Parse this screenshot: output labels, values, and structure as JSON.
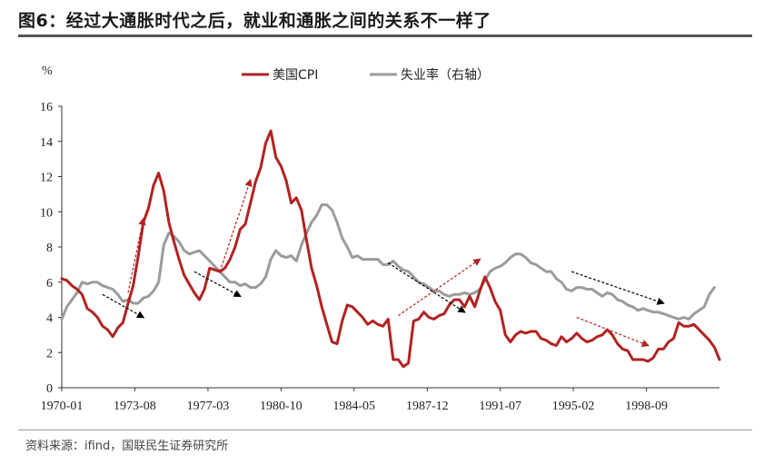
{
  "title": "图6：经过大通胀时代之后，就业和通胀之间的关系不一样了",
  "source": "资料来源：ifind，国联民生证券研究所",
  "chart_data": {
    "type": "line",
    "ylabel": "%",
    "ylim": [
      0,
      16
    ],
    "yticks": [
      "0",
      "2",
      "4",
      "6",
      "8",
      "10",
      "12",
      "14",
      "16"
    ],
    "xlim": [
      1970.0,
      2002.25
    ],
    "xticks": [
      {
        "label": "1970-01",
        "x": 1970.0
      },
      {
        "label": "1973-08",
        "x": 1973.58
      },
      {
        "label": "1977-03",
        "x": 1977.17
      },
      {
        "label": "1980-10",
        "x": 1980.75
      },
      {
        "label": "1984-05",
        "x": 1984.33
      },
      {
        "label": "1987-12",
        "x": 1987.92
      },
      {
        "label": "1991-07",
        "x": 1991.5
      },
      {
        "label": "1995-02",
        "x": 1995.08
      },
      {
        "label": "1998-09",
        "x": 1998.67
      }
    ],
    "series": [
      {
        "name": "美国CPI",
        "color": "#b22222",
        "points": [
          [
            1970.0,
            6.2
          ],
          [
            1970.25,
            6.1
          ],
          [
            1970.5,
            5.8
          ],
          [
            1970.75,
            5.6
          ],
          [
            1971.0,
            5.3
          ],
          [
            1971.25,
            4.5
          ],
          [
            1971.5,
            4.3
          ],
          [
            1971.75,
            4.0
          ],
          [
            1972.0,
            3.5
          ],
          [
            1972.25,
            3.3
          ],
          [
            1972.5,
            2.9
          ],
          [
            1972.75,
            3.4
          ],
          [
            1973.0,
            3.7
          ],
          [
            1973.25,
            4.8
          ],
          [
            1973.5,
            5.8
          ],
          [
            1973.75,
            7.5
          ],
          [
            1974.0,
            9.4
          ],
          [
            1974.25,
            10.2
          ],
          [
            1974.5,
            11.5
          ],
          [
            1974.75,
            12.2
          ],
          [
            1975.0,
            11.2
          ],
          [
            1975.25,
            9.4
          ],
          [
            1975.5,
            8.3
          ],
          [
            1975.75,
            7.3
          ],
          [
            1976.0,
            6.4
          ],
          [
            1976.25,
            5.9
          ],
          [
            1976.5,
            5.4
          ],
          [
            1976.75,
            5.0
          ],
          [
            1977.0,
            5.6
          ],
          [
            1977.25,
            6.8
          ],
          [
            1977.5,
            6.7
          ],
          [
            1977.75,
            6.6
          ],
          [
            1978.0,
            6.8
          ],
          [
            1978.25,
            7.3
          ],
          [
            1978.5,
            8.0
          ],
          [
            1978.75,
            9.0
          ],
          [
            1979.0,
            9.3
          ],
          [
            1979.25,
            10.5
          ],
          [
            1979.5,
            11.7
          ],
          [
            1979.75,
            12.5
          ],
          [
            1980.0,
            13.9
          ],
          [
            1980.25,
            14.6
          ],
          [
            1980.5,
            13.1
          ],
          [
            1980.75,
            12.6
          ],
          [
            1981.0,
            11.8
          ],
          [
            1981.25,
            10.5
          ],
          [
            1981.5,
            10.8
          ],
          [
            1981.75,
            10.1
          ],
          [
            1982.0,
            8.4
          ],
          [
            1982.25,
            6.8
          ],
          [
            1982.5,
            5.8
          ],
          [
            1982.75,
            4.6
          ],
          [
            1983.0,
            3.6
          ],
          [
            1983.25,
            2.6
          ],
          [
            1983.5,
            2.5
          ],
          [
            1983.75,
            3.8
          ],
          [
            1984.0,
            4.7
          ],
          [
            1984.25,
            4.6
          ],
          [
            1984.5,
            4.3
          ],
          [
            1984.75,
            4.0
          ],
          [
            1985.0,
            3.6
          ],
          [
            1985.25,
            3.8
          ],
          [
            1985.5,
            3.6
          ],
          [
            1985.75,
            3.5
          ],
          [
            1986.0,
            3.9
          ],
          [
            1986.25,
            1.6
          ],
          [
            1986.5,
            1.6
          ],
          [
            1986.75,
            1.2
          ],
          [
            1987.0,
            1.4
          ],
          [
            1987.25,
            3.8
          ],
          [
            1987.5,
            3.9
          ],
          [
            1987.75,
            4.3
          ],
          [
            1988.0,
            4.0
          ],
          [
            1988.25,
            3.9
          ],
          [
            1988.5,
            4.1
          ],
          [
            1988.75,
            4.2
          ],
          [
            1989.0,
            4.7
          ],
          [
            1989.25,
            5.0
          ],
          [
            1989.5,
            5.0
          ],
          [
            1989.75,
            4.6
          ],
          [
            1990.0,
            5.2
          ],
          [
            1990.25,
            4.6
          ],
          [
            1990.5,
            5.5
          ],
          [
            1990.75,
            6.3
          ],
          [
            1991.0,
            5.7
          ],
          [
            1991.25,
            4.9
          ],
          [
            1991.5,
            4.4
          ],
          [
            1991.75,
            3.0
          ],
          [
            1992.0,
            2.6
          ],
          [
            1992.25,
            3.0
          ],
          [
            1992.5,
            3.2
          ],
          [
            1992.75,
            3.1
          ],
          [
            1993.0,
            3.2
          ],
          [
            1993.25,
            3.2
          ],
          [
            1993.5,
            2.8
          ],
          [
            1993.75,
            2.7
          ],
          [
            1994.0,
            2.5
          ],
          [
            1994.25,
            2.4
          ],
          [
            1994.5,
            2.9
          ],
          [
            1994.75,
            2.6
          ],
          [
            1995.0,
            2.8
          ],
          [
            1995.25,
            3.1
          ],
          [
            1995.5,
            2.8
          ],
          [
            1995.75,
            2.6
          ],
          [
            1996.0,
            2.7
          ],
          [
            1996.25,
            2.9
          ],
          [
            1996.5,
            3.0
          ],
          [
            1996.75,
            3.3
          ],
          [
            1997.0,
            3.0
          ],
          [
            1997.25,
            2.5
          ],
          [
            1997.5,
            2.2
          ],
          [
            1997.75,
            2.1
          ],
          [
            1998.0,
            1.6
          ],
          [
            1998.25,
            1.6
          ],
          [
            1998.5,
            1.6
          ],
          [
            1998.75,
            1.5
          ],
          [
            1999.0,
            1.7
          ],
          [
            1999.25,
            2.2
          ],
          [
            1999.5,
            2.2
          ],
          [
            1999.75,
            2.6
          ],
          [
            2000.0,
            2.8
          ],
          [
            2000.25,
            3.7
          ],
          [
            2000.5,
            3.5
          ],
          [
            2000.75,
            3.5
          ],
          [
            2001.0,
            3.6
          ],
          [
            2001.25,
            3.3
          ],
          [
            2001.5,
            3.0
          ],
          [
            2001.75,
            2.7
          ],
          [
            2002.0,
            2.3
          ],
          [
            2002.25,
            1.6
          ]
        ]
      },
      {
        "name": "失业率（右轴）",
        "color": "#9b9b9b",
        "points": [
          [
            1970.0,
            3.9
          ],
          [
            1970.25,
            4.6
          ],
          [
            1970.5,
            5.0
          ],
          [
            1970.75,
            5.4
          ],
          [
            1971.0,
            6.0
          ],
          [
            1971.25,
            5.9
          ],
          [
            1971.5,
            6.0
          ],
          [
            1971.75,
            6.0
          ],
          [
            1972.0,
            5.8
          ],
          [
            1972.25,
            5.7
          ],
          [
            1972.5,
            5.6
          ],
          [
            1972.75,
            5.3
          ],
          [
            1973.0,
            4.9
          ],
          [
            1973.25,
            5.0
          ],
          [
            1973.5,
            4.8
          ],
          [
            1973.75,
            4.8
          ],
          [
            1974.0,
            5.1
          ],
          [
            1974.25,
            5.2
          ],
          [
            1974.5,
            5.5
          ],
          [
            1974.75,
            6.0
          ],
          [
            1975.0,
            8.1
          ],
          [
            1975.25,
            8.8
          ],
          [
            1975.5,
            8.6
          ],
          [
            1975.75,
            8.3
          ],
          [
            1976.0,
            7.8
          ],
          [
            1976.25,
            7.6
          ],
          [
            1976.5,
            7.7
          ],
          [
            1976.75,
            7.8
          ],
          [
            1977.0,
            7.5
          ],
          [
            1977.25,
            7.2
          ],
          [
            1977.5,
            6.9
          ],
          [
            1977.75,
            6.6
          ],
          [
            1978.0,
            6.3
          ],
          [
            1978.25,
            6.0
          ],
          [
            1978.5,
            6.0
          ],
          [
            1978.75,
            5.8
          ],
          [
            1979.0,
            5.9
          ],
          [
            1979.25,
            5.7
          ],
          [
            1979.5,
            5.7
          ],
          [
            1979.75,
            5.9
          ],
          [
            1980.0,
            6.3
          ],
          [
            1980.25,
            7.3
          ],
          [
            1980.5,
            7.8
          ],
          [
            1980.75,
            7.5
          ],
          [
            1981.0,
            7.4
          ],
          [
            1981.25,
            7.5
          ],
          [
            1981.5,
            7.2
          ],
          [
            1981.75,
            8.1
          ],
          [
            1982.0,
            8.8
          ],
          [
            1982.25,
            9.4
          ],
          [
            1982.5,
            9.8
          ],
          [
            1982.75,
            10.4
          ],
          [
            1983.0,
            10.4
          ],
          [
            1983.25,
            10.1
          ],
          [
            1983.5,
            9.4
          ],
          [
            1983.75,
            8.5
          ],
          [
            1984.0,
            8.0
          ],
          [
            1984.25,
            7.4
          ],
          [
            1984.5,
            7.5
          ],
          [
            1984.75,
            7.3
          ],
          [
            1985.0,
            7.3
          ],
          [
            1985.25,
            7.3
          ],
          [
            1985.5,
            7.3
          ],
          [
            1985.75,
            7.0
          ],
          [
            1986.0,
            7.0
          ],
          [
            1986.25,
            7.2
          ],
          [
            1986.5,
            6.9
          ],
          [
            1986.75,
            6.7
          ],
          [
            1987.0,
            6.6
          ],
          [
            1987.25,
            6.3
          ],
          [
            1987.5,
            6.0
          ],
          [
            1987.75,
            5.9
          ],
          [
            1988.0,
            5.7
          ],
          [
            1988.25,
            5.5
          ],
          [
            1988.5,
            5.5
          ],
          [
            1988.75,
            5.3
          ],
          [
            1989.0,
            5.2
          ],
          [
            1989.25,
            5.3
          ],
          [
            1989.5,
            5.3
          ],
          [
            1989.75,
            5.4
          ],
          [
            1990.0,
            5.3
          ],
          [
            1990.25,
            5.4
          ],
          [
            1990.5,
            5.6
          ],
          [
            1990.75,
            6.1
          ],
          [
            1991.0,
            6.6
          ],
          [
            1991.25,
            6.8
          ],
          [
            1991.5,
            6.9
          ],
          [
            1991.75,
            7.1
          ],
          [
            1992.0,
            7.4
          ],
          [
            1992.25,
            7.6
          ],
          [
            1992.5,
            7.6
          ],
          [
            1992.75,
            7.4
          ],
          [
            1993.0,
            7.1
          ],
          [
            1993.25,
            7.0
          ],
          [
            1993.5,
            6.8
          ],
          [
            1993.75,
            6.6
          ],
          [
            1994.0,
            6.6
          ],
          [
            1994.25,
            6.2
          ],
          [
            1994.5,
            6.0
          ],
          [
            1994.75,
            5.6
          ],
          [
            1995.0,
            5.5
          ],
          [
            1995.25,
            5.7
          ],
          [
            1995.5,
            5.7
          ],
          [
            1995.75,
            5.6
          ],
          [
            1996.0,
            5.6
          ],
          [
            1996.25,
            5.4
          ],
          [
            1996.5,
            5.2
          ],
          [
            1996.75,
            5.4
          ],
          [
            1997.0,
            5.3
          ],
          [
            1997.25,
            5.0
          ],
          [
            1997.5,
            4.9
          ],
          [
            1997.75,
            4.7
          ],
          [
            1998.0,
            4.6
          ],
          [
            1998.25,
            4.4
          ],
          [
            1998.5,
            4.5
          ],
          [
            1998.75,
            4.4
          ],
          [
            1999.0,
            4.3
          ],
          [
            1999.25,
            4.3
          ],
          [
            1999.5,
            4.2
          ],
          [
            1999.75,
            4.1
          ],
          [
            2000.0,
            4.0
          ],
          [
            2000.25,
            3.9
          ],
          [
            2000.5,
            4.0
          ],
          [
            2000.75,
            3.9
          ],
          [
            2001.0,
            4.2
          ],
          [
            2001.25,
            4.4
          ],
          [
            2001.5,
            4.6
          ],
          [
            2001.75,
            5.3
          ],
          [
            2002.0,
            5.7
          ]
        ]
      }
    ],
    "annotations": [
      {
        "type": "arrow",
        "color": "#000000",
        "from": [
          1972.0,
          5.3
        ],
        "to": [
          1974.0,
          4.0
        ]
      },
      {
        "type": "arrow",
        "color": "#b22222",
        "from": [
          1973.25,
          5.4
        ],
        "to": [
          1974.0,
          9.6
        ]
      },
      {
        "type": "arrow",
        "color": "#000000",
        "from": [
          1976.5,
          6.6
        ],
        "to": [
          1978.75,
          5.2
        ]
      },
      {
        "type": "arrow",
        "color": "#b22222",
        "from": [
          1977.75,
          6.6
        ],
        "to": [
          1979.25,
          11.8
        ]
      },
      {
        "type": "arrow",
        "color": "#000000",
        "from": [
          1986.0,
          7.1
        ],
        "to": [
          1989.75,
          4.3
        ]
      },
      {
        "type": "arrow",
        "color": "#b22222",
        "from": [
          1986.5,
          4.1
        ],
        "to": [
          1990.5,
          7.3
        ]
      },
      {
        "type": "arrow",
        "color": "#000000",
        "from": [
          1995.0,
          6.6
        ],
        "to": [
          1999.5,
          4.8
        ]
      },
      {
        "type": "arrow",
        "color": "#b22222",
        "from": [
          1995.25,
          4.0
        ],
        "to": [
          1998.75,
          2.4
        ]
      }
    ],
    "grid": false,
    "legend_position": "top-center"
  }
}
